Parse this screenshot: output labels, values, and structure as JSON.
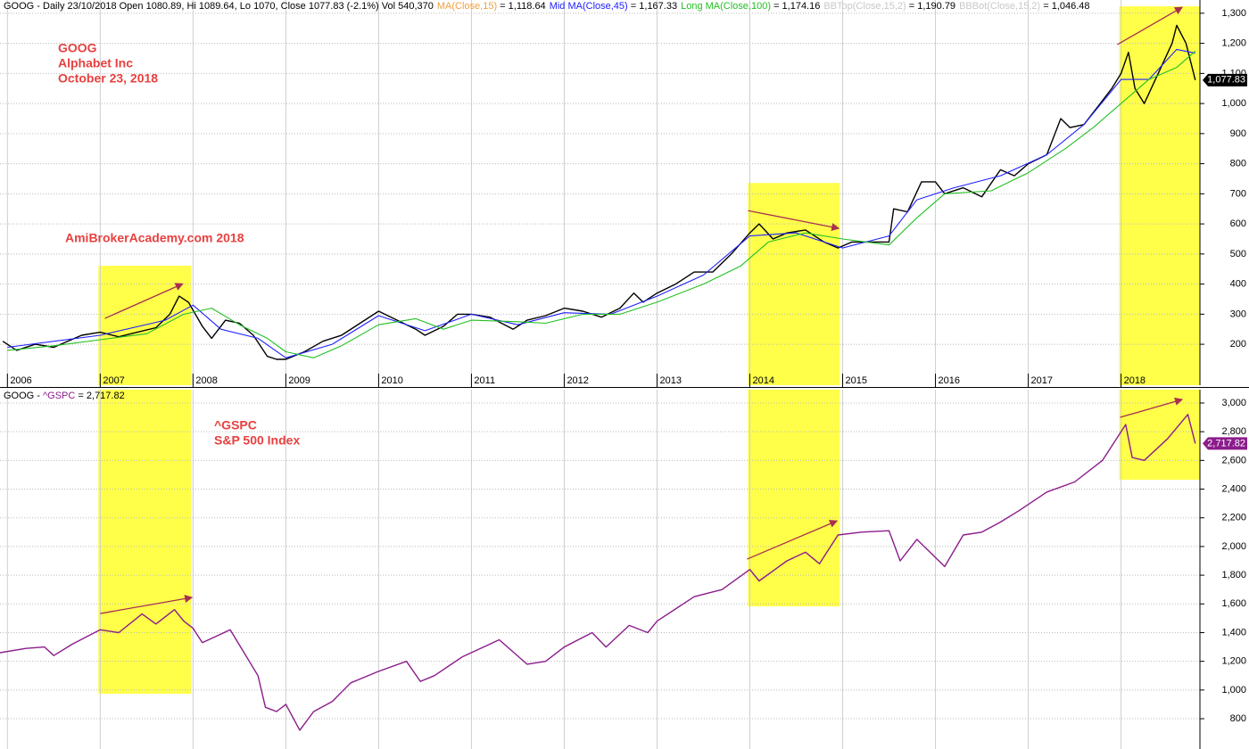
{
  "chart_data": [
    {
      "type": "line",
      "title": "GOOG - Daily 23/10/2018 Open 1080.89, Hi 1089.64, Lo 1070, Close 1077.83 (-2.1%) Vol 540,370",
      "separator": " = ",
      "header_items": [
        {
          "name": "MA(Close,15)",
          "color": "#f0a040",
          "text": "1,118.64"
        },
        {
          "name": "Mid MA(Close,45)",
          "color": "#2020ff",
          "text": "1,167.33"
        },
        {
          "name": "Long MA(Close,100)",
          "color": "#22c022",
          "text": "1,174.16"
        },
        {
          "name": "BBTop(Close,15,2)",
          "color": "#c8c8c8",
          "text": "1,190.79"
        },
        {
          "name": "BBBot(Close,15,2)",
          "color": "#c8c8c8",
          "text": "1,046.48"
        }
      ],
      "annotations": {
        "color": "#e84040",
        "texts": [
          "GOOG",
          "Alphabet Inc",
          "October 23, 2018",
          "AmiBrokerAcademy.com  2018"
        ]
      },
      "series": [
        {
          "color": "#000000",
          "x": [
            2005.95,
            2006.1,
            2006.3,
            2006.5,
            2006.8,
            2007.0,
            2007.2,
            2007.4,
            2007.6,
            2007.75,
            2007.85,
            2007.95,
            2008.1,
            2008.2,
            2008.35,
            2008.5,
            2008.65,
            2008.8,
            2008.9,
            2009.0,
            2009.2,
            2009.4,
            2009.6,
            2009.8,
            2010.0,
            2010.2,
            2010.4,
            2010.5,
            2010.7,
            2010.85,
            2011.0,
            2011.2,
            2011.45,
            2011.6,
            2011.8,
            2012.0,
            2012.2,
            2012.4,
            2012.6,
            2012.75,
            2012.85,
            2013.0,
            2013.2,
            2013.4,
            2013.6,
            2013.8,
            2014.0,
            2014.1,
            2014.25,
            2014.4,
            2014.6,
            2014.8,
            2014.95,
            2015.1,
            2015.3,
            2015.5,
            2015.55,
            2015.7,
            2015.85,
            2016.0,
            2016.1,
            2016.3,
            2016.5,
            2016.7,
            2016.85,
            2017.0,
            2017.2,
            2017.35,
            2017.45,
            2017.6,
            2017.75,
            2017.9,
            2018.0,
            2018.08,
            2018.15,
            2018.25,
            2018.4,
            2018.55,
            2018.6,
            2018.7,
            2018.8
          ],
          "values": [
            210,
            180,
            200,
            190,
            230,
            240,
            225,
            240,
            255,
            300,
            360,
            340,
            260,
            220,
            280,
            270,
            230,
            160,
            150,
            150,
            175,
            210,
            230,
            270,
            310,
            280,
            250,
            230,
            260,
            300,
            300,
            290,
            250,
            280,
            295,
            320,
            310,
            290,
            320,
            370,
            340,
            370,
            400,
            440,
            440,
            500,
            570,
            600,
            550,
            570,
            580,
            540,
            520,
            540,
            540,
            540,
            650,
            640,
            740,
            740,
            700,
            720,
            690,
            780,
            760,
            800,
            830,
            950,
            920,
            930,
            990,
            1050,
            1100,
            1170,
            1050,
            1000,
            1100,
            1200,
            1260,
            1200,
            1077.83
          ]
        },
        {
          "color": "#2020ff",
          "x": [
            2006.0,
            2007.0,
            2007.7,
            2008.0,
            2008.3,
            2008.7,
            2009.0,
            2009.5,
            2010.0,
            2010.5,
            2011.0,
            2011.5,
            2012.0,
            2012.5,
            2013.0,
            2013.5,
            2014.0,
            2014.5,
            2015.0,
            2015.5,
            2015.8,
            2016.2,
            2016.7,
            2017.2,
            2017.6,
            2018.0,
            2018.3,
            2018.6,
            2018.8
          ],
          "values": [
            190,
            230,
            280,
            330,
            250,
            220,
            155,
            200,
            295,
            245,
            300,
            265,
            305,
            300,
            360,
            430,
            560,
            570,
            520,
            560,
            680,
            720,
            760,
            830,
            930,
            1080,
            1080,
            1180,
            1167.33
          ]
        },
        {
          "color": "#22c022",
          "x": [
            2006.0,
            2006.5,
            2007.0,
            2007.5,
            2007.9,
            2008.2,
            2008.5,
            2008.8,
            2009.0,
            2009.3,
            2009.6,
            2010.0,
            2010.4,
            2010.7,
            2011.0,
            2011.5,
            2011.8,
            2012.2,
            2012.6,
            2013.0,
            2013.5,
            2013.9,
            2014.2,
            2014.6,
            2015.0,
            2015.5,
            2015.8,
            2016.1,
            2016.6,
            2017.0,
            2017.4,
            2017.7,
            2018.0,
            2018.3,
            2018.6,
            2018.8
          ],
          "values": [
            180,
            195,
            215,
            235,
            300,
            320,
            265,
            220,
            175,
            155,
            195,
            265,
            285,
            250,
            280,
            275,
            270,
            300,
            300,
            340,
            400,
            460,
            540,
            570,
            550,
            530,
            620,
            700,
            710,
            770,
            850,
            920,
            1000,
            1080,
            1120,
            1174.16
          ]
        }
      ],
      "last_label": {
        "value": 1077.83,
        "label": "1,077.83"
      },
      "xlim": [
        2005.92,
        2018.85
      ],
      "xticks": [
        2006,
        2007,
        2008,
        2009,
        2010,
        2011,
        2012,
        2013,
        2014,
        2015,
        2016,
        2017,
        2018
      ],
      "ylim": [
        64,
        1344
      ],
      "yticks": [
        200,
        300,
        400,
        500,
        600,
        700,
        800,
        900,
        {
          "value": 1000,
          "label": "1,000"
        },
        {
          "value": 1100,
          "label": "1,100"
        },
        {
          "value": 1200,
          "label": "1,200"
        },
        {
          "value": 1300,
          "label": "1,300"
        }
      ],
      "grid": true,
      "highlights": {
        "color": "#ffff4a",
        "ranges": [
          {
            "x": [
              2006.98,
              2007.98
            ],
            "y": [
              64,
              461
            ]
          },
          {
            "x": [
              2013.98,
              2014.97
            ],
            "y": [
              64,
              736
            ]
          },
          {
            "x": [
              2017.98,
              2018.85
            ],
            "y": [
              64,
              1323
            ]
          }
        ]
      },
      "arrows": {
        "color": "#a83050",
        "items": [
          {
            "x": [
              2007.05,
              2007.89
            ],
            "y": [
              286,
              401
            ]
          },
          {
            "x": [
              2013.98,
              2014.96
            ],
            "y": [
              644,
              585
            ]
          },
          {
            "x": [
              2017.96,
              2018.66
            ],
            "y": [
              1196,
              1320
            ]
          }
        ]
      }
    },
    {
      "type": "line",
      "title": "GOOG - ",
      "separator": " = ",
      "header_value": "2,717.82",
      "annotations": {
        "color": "#e84040",
        "texts": [
          "^GSPC",
          "S&P 500 Index"
        ]
      },
      "series": [
        {
          "name": "^GSPC",
          "color": "#8b1c8b",
          "x": [
            2005.92,
            2006.2,
            2006.4,
            2006.5,
            2006.7,
            2007.0,
            2007.2,
            2007.45,
            2007.6,
            2007.8,
            2007.9,
            2008.0,
            2008.1,
            2008.3,
            2008.4,
            2008.55,
            2008.7,
            2008.78,
            2008.9,
            2009.0,
            2009.15,
            2009.3,
            2009.5,
            2009.7,
            2010.0,
            2010.3,
            2010.45,
            2010.6,
            2010.9,
            2011.3,
            2011.6,
            2011.8,
            2012.0,
            2012.3,
            2012.45,
            2012.7,
            2012.9,
            2013.0,
            2013.4,
            2013.7,
            2014.0,
            2014.1,
            2014.4,
            2014.6,
            2014.75,
            2014.95,
            2015.2,
            2015.5,
            2015.62,
            2015.8,
            2016.1,
            2016.3,
            2016.5,
            2016.7,
            2016.9,
            2017.2,
            2017.5,
            2017.8,
            2018.05,
            2018.12,
            2018.25,
            2018.5,
            2018.72,
            2018.8
          ],
          "values": [
            1260,
            1290,
            1300,
            1240,
            1320,
            1420,
            1400,
            1530,
            1460,
            1560,
            1480,
            1430,
            1330,
            1390,
            1420,
            1260,
            1100,
            880,
            850,
            900,
            720,
            850,
            920,
            1050,
            1130,
            1200,
            1060,
            1100,
            1230,
            1350,
            1180,
            1200,
            1300,
            1400,
            1300,
            1450,
            1400,
            1480,
            1650,
            1700,
            1840,
            1760,
            1900,
            1960,
            1880,
            2080,
            2100,
            2110,
            1900,
            2050,
            1860,
            2080,
            2100,
            2170,
            2250,
            2380,
            2450,
            2600,
            2850,
            2620,
            2600,
            2750,
            2920,
            2717.82
          ]
        }
      ],
      "last_label": {
        "value": 2717.82,
        "label": "2,717.82"
      },
      "xlim": [
        2005.92,
        2018.85
      ],
      "ylim": [
        589,
        3093
      ],
      "yticks": [
        800,
        {
          "value": 1000,
          "label": "1,000"
        },
        {
          "value": 1200,
          "label": "1,200"
        },
        {
          "value": 1400,
          "label": "1,400"
        },
        {
          "value": 1600,
          "label": "1,600"
        },
        {
          "value": 1800,
          "label": "1,800"
        },
        {
          "value": 2000,
          "label": "2,000"
        },
        {
          "value": 2200,
          "label": "2,200"
        },
        {
          "value": 2400,
          "label": "2,400"
        },
        {
          "value": 2600,
          "label": "2,600"
        },
        {
          "value": 2800,
          "label": "2,800"
        },
        {
          "value": 3000,
          "label": "3,000"
        }
      ],
      "grid": true,
      "highlights": {
        "color": "#ffff4a",
        "ranges": [
          {
            "x": [
              2006.98,
              2007.98
            ],
            "y": [
              974,
              3093
            ]
          },
          {
            "x": [
              2013.98,
              2014.97
            ],
            "y": [
              1583,
              3093
            ]
          },
          {
            "x": [
              2017.98,
              2018.85
            ],
            "y": [
              2465,
              3093
            ]
          }
        ]
      },
      "arrows": {
        "color": "#a83050",
        "items": [
          {
            "x": [
              2007.0,
              2007.99
            ],
            "y": [
              1533,
              1645
            ]
          },
          {
            "x": [
              2013.97,
              2014.94
            ],
            "y": [
              1912,
              2179
            ]
          },
          {
            "x": [
              2017.99,
              2018.66
            ],
            "y": [
              2900,
              3025
            ]
          }
        ]
      }
    }
  ]
}
